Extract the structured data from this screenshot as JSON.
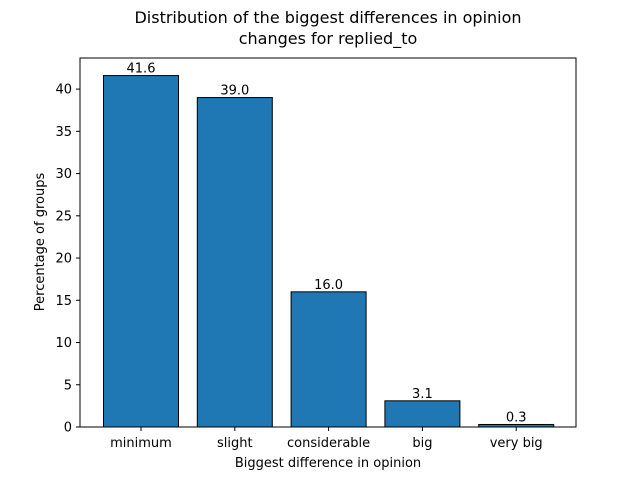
{
  "chart_data": {
    "type": "bar",
    "title_lines": [
      "Distribution of the biggest differences in opinion",
      "changes for replied_to"
    ],
    "xlabel": "Biggest difference in opinion",
    "ylabel": "Percentage of groups",
    "categories": [
      "minimum",
      "slight",
      "considerable",
      "big",
      "very big"
    ],
    "values": [
      41.6,
      39.0,
      16.0,
      3.1,
      0.3
    ],
    "data_labels": [
      "41.6",
      "39.0",
      "16.0",
      "3.1",
      "0.3"
    ],
    "ylim": [
      0,
      43.68
    ],
    "yticks": [
      0,
      5,
      10,
      15,
      20,
      25,
      30,
      35,
      40
    ],
    "grid": false,
    "bar_color": "#1f77b4",
    "edge_color": "#000000"
  }
}
